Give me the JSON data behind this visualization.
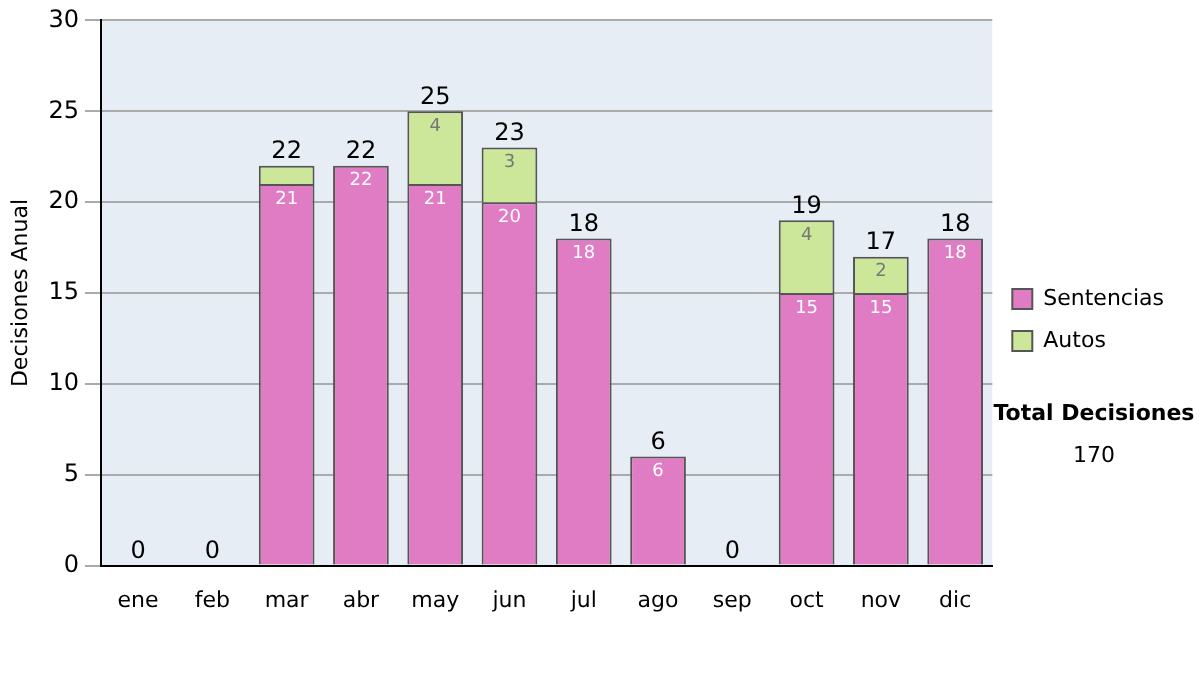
{
  "chart_data": {
    "type": "bar",
    "stacked": true,
    "ylabel": "Decisiones Anual",
    "categories": [
      "ene",
      "feb",
      "mar",
      "abr",
      "may",
      "jun",
      "jul",
      "ago",
      "sep",
      "oct",
      "nov",
      "dic"
    ],
    "series": [
      {
        "name": "Sentencias",
        "color": "#e07cc4",
        "values": [
          0,
          0,
          21,
          22,
          21,
          20,
          18,
          6,
          0,
          15,
          15,
          18
        ],
        "value_labels": [
          null,
          null,
          "21",
          "22",
          "21",
          "20",
          "18",
          "6",
          null,
          "15",
          "15",
          "18"
        ]
      },
      {
        "name": "Autos",
        "color": "#cce69a",
        "values": [
          0,
          0,
          1,
          0,
          4,
          3,
          0,
          0,
          0,
          4,
          2,
          0
        ],
        "value_labels": [
          null,
          null,
          null,
          null,
          "4",
          "3",
          null,
          null,
          null,
          "4",
          "2",
          null
        ]
      }
    ],
    "totals": [
      "0",
      "0",
      "22",
      "22",
      "25",
      "23",
      "18",
      "6",
      "0",
      "19",
      "17",
      "18"
    ],
    "ylim": [
      0,
      30
    ],
    "yticks": [
      0,
      5,
      10,
      15,
      20,
      25,
      30
    ],
    "grid": "y",
    "legend": "right",
    "annotations": [
      "Total Decisiones",
      "170"
    ]
  }
}
